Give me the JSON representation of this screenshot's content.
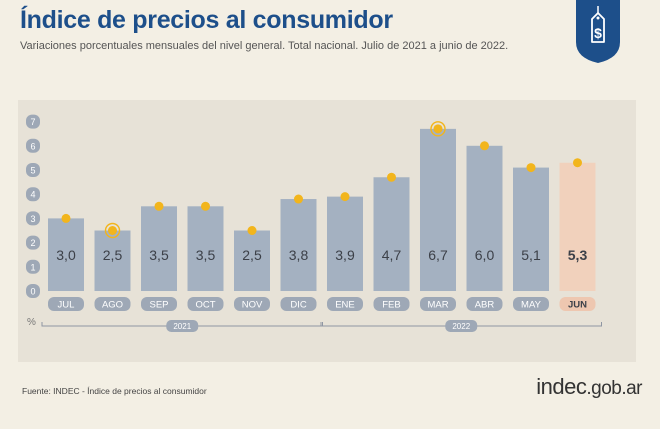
{
  "header": {
    "title": "Índice de precios al consumidor",
    "subtitle": "Variaciones porcentuales mensuales del nivel general. Total nacional. Julio de 2021 a junio de 2022."
  },
  "footer": {
    "source": "Fuente: INDEC - Índice de precios al consumidor",
    "brand_main": "indec",
    "brand_domain": ".gob.ar"
  },
  "colors": {
    "title": "#1d4f8a",
    "bar": "#a4b1c1",
    "bar_highlight": "#f1d1bc",
    "marker": "#f2b51c",
    "badge": "#9ea8b6",
    "badge_highlight": "#eec7b0",
    "logo": "#1d4f8a"
  },
  "chart_data": {
    "type": "bar",
    "categories": [
      "JUL",
      "AGO",
      "SEP",
      "OCT",
      "NOV",
      "DIC",
      "ENE",
      "FEB",
      "MAR",
      "ABR",
      "MAY",
      "JUN"
    ],
    "values": [
      3.0,
      2.5,
      3.5,
      3.5,
      2.5,
      3.8,
      3.9,
      4.7,
      6.7,
      6.0,
      5.1,
      5.3
    ],
    "value_labels": [
      "3,0",
      "2,5",
      "3,5",
      "3,5",
      "2,5",
      "3,8",
      "3,9",
      "4,7",
      "6,7",
      "6,0",
      "5,1",
      "5,3"
    ],
    "highlight_index": 11,
    "ring_markers": [
      1,
      8
    ],
    "ylabel": "%",
    "ylim": [
      0,
      7
    ],
    "yticks": [
      0,
      1,
      2,
      3,
      4,
      5,
      6,
      7
    ],
    "year_groups": [
      {
        "label": "2021",
        "start": 0,
        "end": 5
      },
      {
        "label": "2022",
        "start": 6,
        "end": 11
      }
    ],
    "grid": false,
    "legend": "none"
  }
}
